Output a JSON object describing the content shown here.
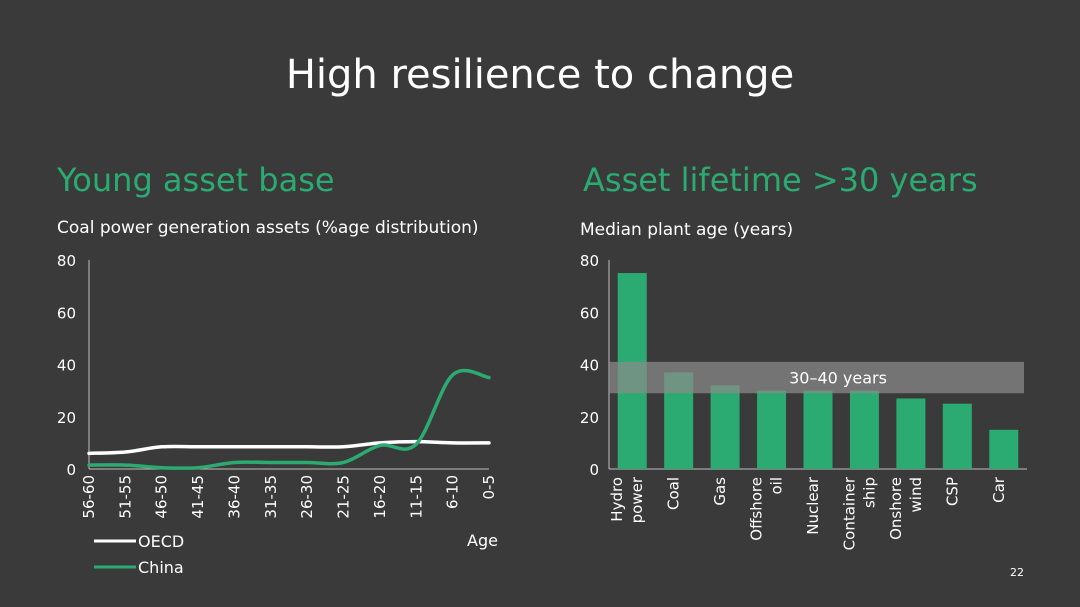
{
  "slide": {
    "title": "High resilience to change",
    "page_number": "22",
    "colors": {
      "background": "#3a3a3a",
      "accent": "#2bab72",
      "text": "#ffffff",
      "band": "#7a7a7a"
    }
  },
  "left_panel": {
    "heading": "Young asset base",
    "caption": "Coal power generation assets (%age distribution)"
  },
  "right_panel": {
    "heading": "Asset lifetime >30 years",
    "caption": "Median plant age (years)"
  },
  "chart_data": [
    {
      "type": "line",
      "x": [
        "56-60",
        "51-55",
        "46-50",
        "41-45",
        "36-40",
        "31-35",
        "26-30",
        "21-25",
        "16-20",
        "11-15",
        "6-10",
        "0-5"
      ],
      "xlabel": "Age",
      "ylabel": "",
      "ylim": [
        0,
        80
      ],
      "yticks": [
        0,
        20,
        40,
        60,
        80
      ],
      "grid": false,
      "legend": "bottom-left",
      "series": [
        {
          "name": "OECD",
          "color": "#ffffff",
          "values": [
            6,
            6.5,
            8.5,
            8.5,
            8.5,
            8.5,
            8.5,
            8.5,
            10,
            10.5,
            10,
            10
          ]
        },
        {
          "name": "China",
          "color": "#2bab72",
          "values": [
            1.5,
            1.5,
            0.5,
            0.5,
            2.5,
            2.5,
            2.5,
            2.5,
            9,
            9.5,
            36,
            35
          ]
        }
      ]
    },
    {
      "type": "bar",
      "categories": [
        [
          "Hydro",
          "power"
        ],
        [
          "Coal"
        ],
        [
          "Gas"
        ],
        [
          "Offshore",
          "oil"
        ],
        [
          "Nuclear"
        ],
        [
          "Container",
          "ship"
        ],
        [
          "Onshore",
          "wind"
        ],
        [
          "CSP"
        ],
        [
          "Car"
        ]
      ],
      "values": [
        75,
        37,
        32,
        30,
        30,
        30,
        27,
        25,
        15
      ],
      "ylim": [
        0,
        80
      ],
      "yticks": [
        0,
        20,
        40,
        60,
        80
      ],
      "grid": false,
      "bar_color": "#2bab72",
      "band": {
        "from": 29,
        "to": 41,
        "label": "30–40 years"
      }
    }
  ]
}
